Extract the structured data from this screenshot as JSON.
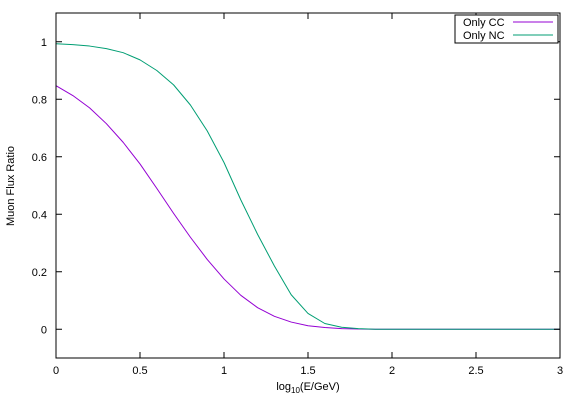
{
  "chart_data": {
    "type": "line",
    "xlabel_prefix": "log",
    "xlabel_sub": "10",
    "xlabel_suffix": "(E/GeV)",
    "ylabel": "Muon Flux Ratio",
    "xlim": [
      0,
      3
    ],
    "ylim": [
      -0.1,
      1.1
    ],
    "xticks": [
      0,
      0.5,
      1,
      1.5,
      2,
      2.5,
      3
    ],
    "xtick_labels": [
      "0",
      "0.5",
      "1",
      "1.5",
      "2",
      "2.5",
      "3"
    ],
    "yticks": [
      0,
      0.2,
      0.4,
      0.6,
      0.8,
      1
    ],
    "ytick_labels": [
      "0",
      "0.2",
      "0.4",
      "0.6",
      "0.8",
      "1"
    ],
    "grid": false,
    "legend_position": "top-right",
    "series": [
      {
        "name": "Only CC",
        "color": "#9400d3",
        "x": [
          0,
          0.1,
          0.2,
          0.3,
          0.4,
          0.5,
          0.6,
          0.7,
          0.8,
          0.9,
          1.0,
          1.1,
          1.2,
          1.3,
          1.4,
          1.5,
          1.6,
          1.7,
          1.8,
          1.9,
          2.0,
          2.5,
          3.0
        ],
        "y": [
          0.847,
          0.813,
          0.77,
          0.715,
          0.65,
          0.575,
          0.49,
          0.403,
          0.32,
          0.243,
          0.175,
          0.118,
          0.075,
          0.045,
          0.025,
          0.012,
          0.006,
          0.002,
          0.001,
          0.0,
          0.0,
          0.0,
          0.0
        ]
      },
      {
        "name": "Only NC",
        "color": "#009e73",
        "x": [
          0,
          0.1,
          0.2,
          0.3,
          0.4,
          0.5,
          0.6,
          0.7,
          0.8,
          0.9,
          1.0,
          1.1,
          1.2,
          1.3,
          1.4,
          1.5,
          1.6,
          1.7,
          1.8,
          1.9,
          2.0,
          2.5,
          3.0
        ],
        "y": [
          0.993,
          0.99,
          0.985,
          0.976,
          0.962,
          0.937,
          0.9,
          0.85,
          0.78,
          0.69,
          0.58,
          0.45,
          0.33,
          0.22,
          0.12,
          0.055,
          0.02,
          0.007,
          0.002,
          0.0,
          0.0,
          0.0,
          0.0
        ]
      }
    ]
  }
}
